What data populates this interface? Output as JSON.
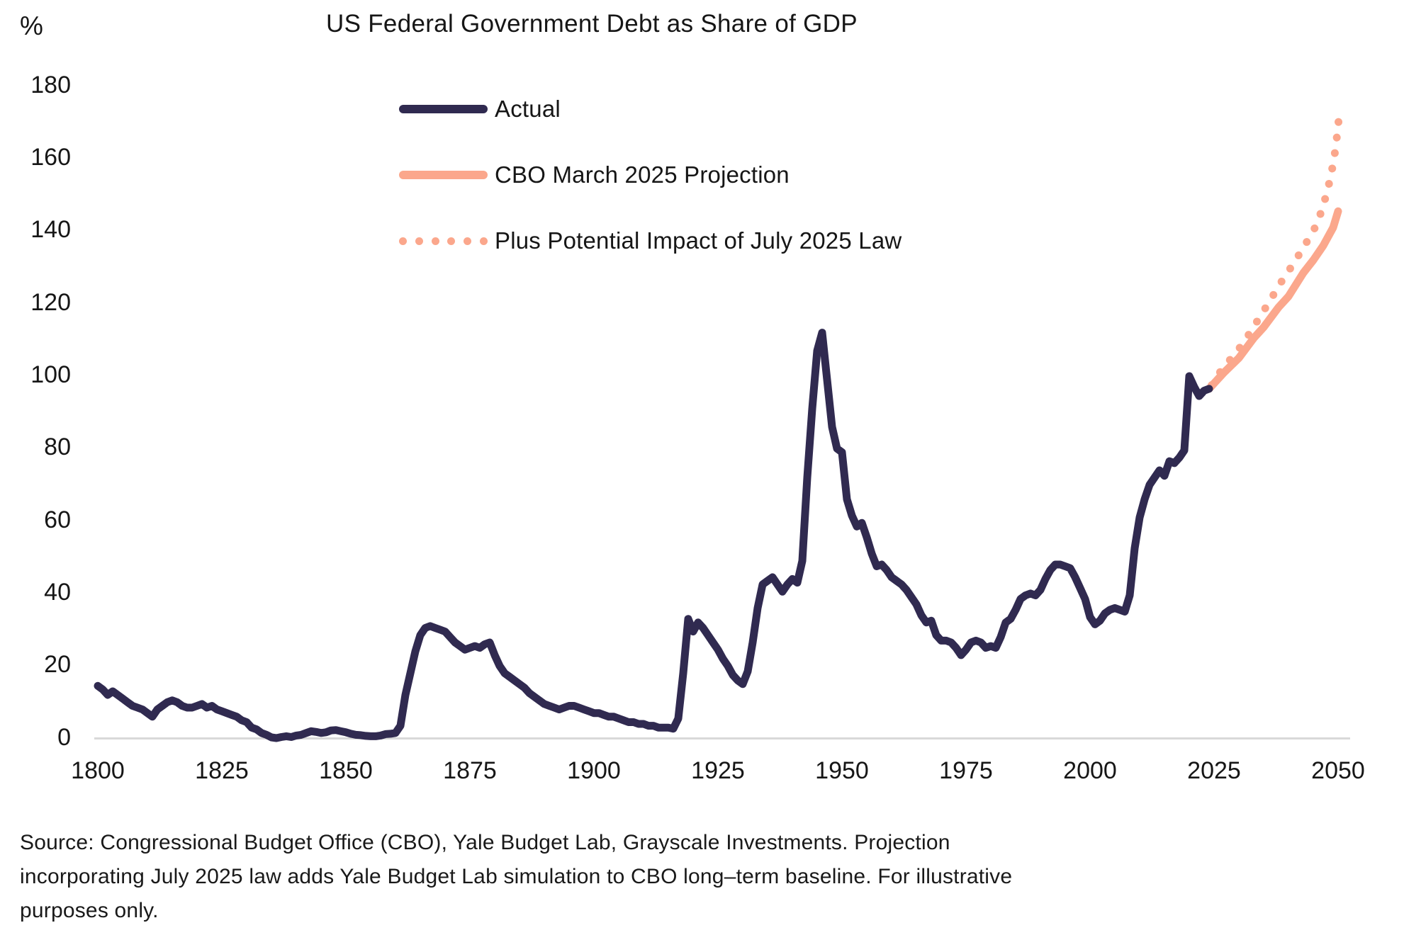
{
  "header": {
    "unit_label": "%",
    "title": "US Federal Government Debt as Share of GDP"
  },
  "footer": {
    "source_lines": [
      "Source: Congressional Budget Office (CBO), Yale Budget Lab, Grayscale Investments. Projection",
      "incorporating July 2025 law adds Yale Budget Lab simulation to CBO long–term baseline. For illustrative",
      "purposes only."
    ]
  },
  "colors": {
    "actual": "#302A50",
    "projection": "#FBA78C",
    "axis": "#d9d9d9",
    "text": "#161616"
  },
  "chart_data": {
    "type": "line",
    "title": "US Federal Government Debt as Share of GDP",
    "xlabel": "",
    "ylabel": "%",
    "grid": false,
    "legend_position": "top-center",
    "x_ticks": [
      1800,
      1825,
      1850,
      1875,
      1900,
      1925,
      1950,
      1975,
      2000,
      2025,
      2050
    ],
    "y_ticks": [
      0,
      20,
      40,
      60,
      80,
      100,
      120,
      140,
      160,
      180
    ],
    "xlim": [
      1800,
      2050
    ],
    "ylim": [
      0,
      180
    ],
    "series": [
      {
        "name": "Actual",
        "style": "solid",
        "color": "#302A50",
        "points": [
          [
            1800,
            14.5
          ],
          [
            1801,
            13.5
          ],
          [
            1802,
            12
          ],
          [
            1803,
            13
          ],
          [
            1804,
            12
          ],
          [
            1805,
            11
          ],
          [
            1806,
            10
          ],
          [
            1807,
            9
          ],
          [
            1808,
            8.5
          ],
          [
            1809,
            8
          ],
          [
            1810,
            7
          ],
          [
            1811,
            6
          ],
          [
            1812,
            8
          ],
          [
            1813,
            9
          ],
          [
            1814,
            10
          ],
          [
            1815,
            10.5
          ],
          [
            1816,
            10
          ],
          [
            1817,
            9
          ],
          [
            1818,
            8.5
          ],
          [
            1819,
            8.5
          ],
          [
            1820,
            9
          ],
          [
            1821,
            9.5
          ],
          [
            1822,
            8.5
          ],
          [
            1823,
            9
          ],
          [
            1824,
            8
          ],
          [
            1825,
            7.5
          ],
          [
            1826,
            7
          ],
          [
            1827,
            6.5
          ],
          [
            1828,
            6
          ],
          [
            1829,
            5
          ],
          [
            1830,
            4.5
          ],
          [
            1831,
            3
          ],
          [
            1832,
            2.5
          ],
          [
            1833,
            1.5
          ],
          [
            1834,
            1
          ],
          [
            1835,
            0.3
          ],
          [
            1836,
            0.1
          ],
          [
            1837,
            0.4
          ],
          [
            1838,
            0.6
          ],
          [
            1839,
            0.4
          ],
          [
            1840,
            0.8
          ],
          [
            1841,
            1
          ],
          [
            1842,
            1.5
          ],
          [
            1843,
            2
          ],
          [
            1844,
            1.8
          ],
          [
            1845,
            1.5
          ],
          [
            1846,
            1.7
          ],
          [
            1847,
            2.2
          ],
          [
            1848,
            2.3
          ],
          [
            1849,
            2
          ],
          [
            1850,
            1.7
          ],
          [
            1851,
            1.3
          ],
          [
            1852,
            1
          ],
          [
            1853,
            0.9
          ],
          [
            1854,
            0.7
          ],
          [
            1855,
            0.6
          ],
          [
            1856,
            0.6
          ],
          [
            1857,
            0.8
          ],
          [
            1858,
            1.2
          ],
          [
            1859,
            1.3
          ],
          [
            1860,
            1.5
          ],
          [
            1861,
            3.5
          ],
          [
            1862,
            12
          ],
          [
            1863,
            18
          ],
          [
            1864,
            24
          ],
          [
            1865,
            28.5
          ],
          [
            1866,
            30.5
          ],
          [
            1867,
            31
          ],
          [
            1868,
            30.5
          ],
          [
            1869,
            30
          ],
          [
            1870,
            29.5
          ],
          [
            1871,
            28
          ],
          [
            1872,
            26.5
          ],
          [
            1873,
            25.5
          ],
          [
            1874,
            24.5
          ],
          [
            1875,
            25
          ],
          [
            1876,
            25.5
          ],
          [
            1877,
            25
          ],
          [
            1878,
            26
          ],
          [
            1879,
            26.5
          ],
          [
            1880,
            23
          ],
          [
            1881,
            20
          ],
          [
            1882,
            18
          ],
          [
            1883,
            17
          ],
          [
            1884,
            16
          ],
          [
            1885,
            15
          ],
          [
            1886,
            14
          ],
          [
            1887,
            12.5
          ],
          [
            1888,
            11.5
          ],
          [
            1889,
            10.5
          ],
          [
            1890,
            9.5
          ],
          [
            1891,
            9
          ],
          [
            1892,
            8.5
          ],
          [
            1893,
            8
          ],
          [
            1894,
            8.5
          ],
          [
            1895,
            9
          ],
          [
            1896,
            9
          ],
          [
            1897,
            8.5
          ],
          [
            1898,
            8
          ],
          [
            1899,
            7.5
          ],
          [
            1900,
            7
          ],
          [
            1901,
            7
          ],
          [
            1902,
            6.5
          ],
          [
            1903,
            6
          ],
          [
            1904,
            6
          ],
          [
            1905,
            5.5
          ],
          [
            1906,
            5
          ],
          [
            1907,
            4.5
          ],
          [
            1908,
            4.5
          ],
          [
            1909,
            4
          ],
          [
            1910,
            4
          ],
          [
            1911,
            3.5
          ],
          [
            1912,
            3.5
          ],
          [
            1913,
            3
          ],
          [
            1914,
            3
          ],
          [
            1915,
            3
          ],
          [
            1916,
            2.7
          ],
          [
            1917,
            5.5
          ],
          [
            1918,
            18
          ],
          [
            1919,
            33
          ],
          [
            1920,
            29.5
          ],
          [
            1921,
            32
          ],
          [
            1922,
            30.5
          ],
          [
            1923,
            28.5
          ],
          [
            1924,
            26.5
          ],
          [
            1925,
            24.5
          ],
          [
            1926,
            22
          ],
          [
            1927,
            20
          ],
          [
            1928,
            17.5
          ],
          [
            1929,
            16
          ],
          [
            1930,
            15
          ],
          [
            1931,
            18.5
          ],
          [
            1932,
            26.5
          ],
          [
            1933,
            36
          ],
          [
            1934,
            42.5
          ],
          [
            1935,
            43.5
          ],
          [
            1936,
            44.5
          ],
          [
            1937,
            42.5
          ],
          [
            1938,
            40.5
          ],
          [
            1939,
            42.5
          ],
          [
            1940,
            44
          ],
          [
            1941,
            43
          ],
          [
            1942,
            49
          ],
          [
            1943,
            72
          ],
          [
            1944,
            91
          ],
          [
            1945,
            107
          ],
          [
            1946,
            112
          ],
          [
            1947,
            99
          ],
          [
            1948,
            86
          ],
          [
            1949,
            80
          ],
          [
            1950,
            79
          ],
          [
            1951,
            66
          ],
          [
            1952,
            61.5
          ],
          [
            1953,
            58.5
          ],
          [
            1954,
            59.5
          ],
          [
            1955,
            55.5
          ],
          [
            1956,
            51
          ],
          [
            1957,
            47.5
          ],
          [
            1958,
            48
          ],
          [
            1959,
            46.5
          ],
          [
            1960,
            44.5
          ],
          [
            1961,
            43.5
          ],
          [
            1962,
            42.5
          ],
          [
            1963,
            41
          ],
          [
            1964,
            39
          ],
          [
            1965,
            37
          ],
          [
            1966,
            34
          ],
          [
            1967,
            32
          ],
          [
            1968,
            32.5
          ],
          [
            1969,
            28.5
          ],
          [
            1970,
            27
          ],
          [
            1971,
            27
          ],
          [
            1972,
            26.5
          ],
          [
            1973,
            25
          ],
          [
            1974,
            23
          ],
          [
            1975,
            24.5
          ],
          [
            1976,
            26.5
          ],
          [
            1977,
            27
          ],
          [
            1978,
            26.5
          ],
          [
            1979,
            25
          ],
          [
            1980,
            25.5
          ],
          [
            1981,
            25
          ],
          [
            1982,
            28
          ],
          [
            1983,
            32
          ],
          [
            1984,
            33
          ],
          [
            1985,
            35.5
          ],
          [
            1986,
            38.5
          ],
          [
            1987,
            39.5
          ],
          [
            1988,
            40
          ],
          [
            1989,
            39.5
          ],
          [
            1990,
            41
          ],
          [
            1991,
            44
          ],
          [
            1992,
            46.5
          ],
          [
            1993,
            48
          ],
          [
            1994,
            48
          ],
          [
            1995,
            47.5
          ],
          [
            1996,
            47
          ],
          [
            1997,
            44.5
          ],
          [
            1998,
            41.5
          ],
          [
            1999,
            38.5
          ],
          [
            2000,
            33.5
          ],
          [
            2001,
            31.5
          ],
          [
            2002,
            32.5
          ],
          [
            2003,
            34.5
          ],
          [
            2004,
            35.5
          ],
          [
            2005,
            36
          ],
          [
            2006,
            35.5
          ],
          [
            2007,
            35
          ],
          [
            2008,
            39.5
          ],
          [
            2009,
            52.5
          ],
          [
            2010,
            61
          ],
          [
            2011,
            66
          ],
          [
            2012,
            70
          ],
          [
            2013,
            72
          ],
          [
            2014,
            74
          ],
          [
            2015,
            72.5
          ],
          [
            2016,
            76.5
          ],
          [
            2017,
            76
          ],
          [
            2018,
            77.5
          ],
          [
            2019,
            79.5
          ],
          [
            2020,
            100
          ],
          [
            2021,
            97
          ],
          [
            2022,
            94.5
          ],
          [
            2023,
            96
          ],
          [
            2024,
            96.5
          ]
        ]
      },
      {
        "name": "CBO March 2025 Projection",
        "style": "solid",
        "color": "#FBA78C",
        "points": [
          [
            2024,
            96.5
          ],
          [
            2025,
            98
          ],
          [
            2027,
            101
          ],
          [
            2030,
            105
          ],
          [
            2033,
            110.5
          ],
          [
            2035,
            113.5
          ],
          [
            2038,
            119
          ],
          [
            2040,
            122
          ],
          [
            2043,
            128.5
          ],
          [
            2045,
            132
          ],
          [
            2047,
            136
          ],
          [
            2049,
            141
          ],
          [
            2050,
            145.5
          ]
        ]
      },
      {
        "name": "Plus Potential Impact of July 2025 Law",
        "style": "dotted",
        "color": "#FBA78C",
        "points": [
          [
            2024.5,
            97.5
          ],
          [
            2025,
            99
          ],
          [
            2027,
            102.5
          ],
          [
            2030,
            107.5
          ],
          [
            2032,
            111.5
          ],
          [
            2035,
            118
          ],
          [
            2037,
            122.5
          ],
          [
            2039,
            127
          ],
          [
            2041,
            131
          ],
          [
            2043,
            135.5
          ],
          [
            2045,
            140
          ],
          [
            2046,
            143
          ],
          [
            2047,
            147
          ],
          [
            2048,
            152
          ],
          [
            2049,
            158.5
          ],
          [
            2049.5,
            163
          ],
          [
            2050,
            169
          ],
          [
            2050.2,
            172
          ]
        ]
      }
    ]
  }
}
